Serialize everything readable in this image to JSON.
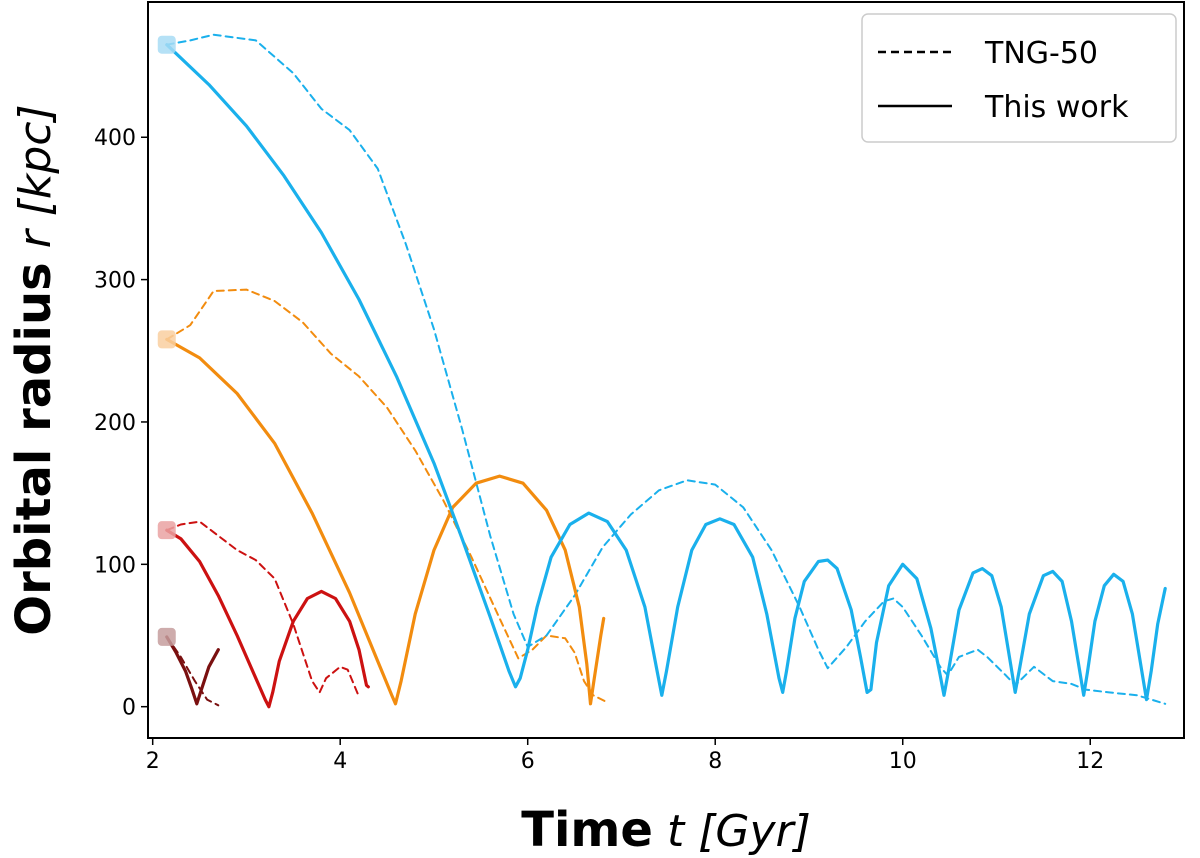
{
  "chart_data": {
    "type": "line",
    "xlabel_bold": "Time",
    "xlabel_unit": " t [Gyr]",
    "ylabel_bold": "Orbital radius",
    "ylabel_unit": " r [kpc]",
    "xlim": [
      1.95,
      13.0
    ],
    "ylim": [
      -22,
      495
    ],
    "xticks": [
      2,
      4,
      6,
      8,
      10,
      12
    ],
    "yticks": [
      0,
      100,
      200,
      300,
      400
    ],
    "legend": {
      "position": "top-right",
      "entries": [
        {
          "label": "TNG-50",
          "style": "dashed"
        },
        {
          "label": "This work",
          "style": "solid"
        }
      ]
    },
    "start_markers": [
      {
        "x": 2.15,
        "y": 465,
        "color": "#a8dcf5"
      },
      {
        "x": 2.15,
        "y": 258,
        "color": "#f9cfa0"
      },
      {
        "x": 2.15,
        "y": 124,
        "color": "#eaa2a2"
      },
      {
        "x": 2.15,
        "y": 49,
        "color": "#c59e9e"
      }
    ],
    "series": [
      {
        "name": "darkred-tng",
        "color": "#7a1010",
        "style": "dashed",
        "points": [
          [
            2.15,
            49
          ],
          [
            2.3,
            35
          ],
          [
            2.45,
            18
          ],
          [
            2.58,
            5
          ],
          [
            2.7,
            1
          ]
        ]
      },
      {
        "name": "darkred-model",
        "color": "#7a1010",
        "style": "solid",
        "points": [
          [
            2.15,
            49
          ],
          [
            2.25,
            38
          ],
          [
            2.35,
            25
          ],
          [
            2.42,
            12
          ],
          [
            2.47,
            2
          ],
          [
            2.52,
            12
          ],
          [
            2.6,
            28
          ],
          [
            2.7,
            40
          ]
        ]
      },
      {
        "name": "red-tng",
        "color": "#cc1111",
        "style": "dashed",
        "points": [
          [
            2.15,
            124
          ],
          [
            2.3,
            128
          ],
          [
            2.5,
            130
          ],
          [
            2.7,
            120
          ],
          [
            2.9,
            110
          ],
          [
            3.1,
            103
          ],
          [
            3.3,
            90
          ],
          [
            3.5,
            58
          ],
          [
            3.7,
            18
          ],
          [
            3.78,
            10
          ],
          [
            3.85,
            20
          ],
          [
            4.0,
            28
          ],
          [
            4.08,
            26
          ],
          [
            4.2,
            7
          ]
        ]
      },
      {
        "name": "red-model",
        "color": "#cc1111",
        "style": "solid",
        "points": [
          [
            2.15,
            124
          ],
          [
            2.3,
            118
          ],
          [
            2.5,
            102
          ],
          [
            2.7,
            78
          ],
          [
            2.9,
            50
          ],
          [
            3.1,
            20
          ],
          [
            3.2,
            5
          ],
          [
            3.24,
            0
          ],
          [
            3.28,
            10
          ],
          [
            3.35,
            32
          ],
          [
            3.5,
            60
          ],
          [
            3.65,
            76
          ],
          [
            3.8,
            81
          ],
          [
            3.95,
            76
          ],
          [
            4.1,
            60
          ],
          [
            4.2,
            40
          ],
          [
            4.28,
            15
          ],
          [
            4.3,
            14
          ]
        ]
      },
      {
        "name": "orange-tng",
        "color": "#f28c0f",
        "style": "dashed",
        "points": [
          [
            2.15,
            258
          ],
          [
            2.4,
            268
          ],
          [
            2.65,
            292
          ],
          [
            3.0,
            293
          ],
          [
            3.3,
            285
          ],
          [
            3.6,
            270
          ],
          [
            3.9,
            248
          ],
          [
            4.2,
            232
          ],
          [
            4.5,
            210
          ],
          [
            4.8,
            180
          ],
          [
            5.1,
            145
          ],
          [
            5.4,
            105
          ],
          [
            5.7,
            62
          ],
          [
            5.9,
            34
          ],
          [
            6.05,
            40
          ],
          [
            6.2,
            50
          ],
          [
            6.4,
            48
          ],
          [
            6.5,
            38
          ],
          [
            6.6,
            18
          ],
          [
            6.7,
            8
          ],
          [
            6.85,
            3
          ]
        ]
      },
      {
        "name": "orange-model",
        "color": "#f28c0f",
        "style": "solid",
        "points": [
          [
            2.15,
            258
          ],
          [
            2.5,
            245
          ],
          [
            2.9,
            220
          ],
          [
            3.3,
            185
          ],
          [
            3.7,
            136
          ],
          [
            4.1,
            80
          ],
          [
            4.4,
            32
          ],
          [
            4.55,
            8
          ],
          [
            4.59,
            2
          ],
          [
            4.65,
            18
          ],
          [
            4.8,
            65
          ],
          [
            5.0,
            110
          ],
          [
            5.2,
            140
          ],
          [
            5.45,
            157
          ],
          [
            5.7,
            162
          ],
          [
            5.95,
            157
          ],
          [
            6.2,
            138
          ],
          [
            6.4,
            110
          ],
          [
            6.55,
            70
          ],
          [
            6.63,
            30
          ],
          [
            6.67,
            2
          ],
          [
            6.71,
            20
          ],
          [
            6.78,
            50
          ],
          [
            6.81,
            62
          ]
        ]
      },
      {
        "name": "blue-tng",
        "color": "#1ab0ec",
        "style": "dashed",
        "points": [
          [
            2.15,
            465
          ],
          [
            2.4,
            468
          ],
          [
            2.65,
            472
          ],
          [
            3.1,
            468
          ],
          [
            3.5,
            445
          ],
          [
            3.8,
            420
          ],
          [
            4.1,
            405
          ],
          [
            4.4,
            378
          ],
          [
            4.7,
            325
          ],
          [
            5.0,
            265
          ],
          [
            5.3,
            195
          ],
          [
            5.6,
            120
          ],
          [
            5.85,
            65
          ],
          [
            6.0,
            42
          ],
          [
            6.2,
            50
          ],
          [
            6.5,
            78
          ],
          [
            6.8,
            112
          ],
          [
            7.1,
            135
          ],
          [
            7.4,
            152
          ],
          [
            7.7,
            159
          ],
          [
            8.0,
            156
          ],
          [
            8.3,
            140
          ],
          [
            8.6,
            110
          ],
          [
            8.9,
            70
          ],
          [
            9.1,
            40
          ],
          [
            9.2,
            27
          ],
          [
            9.4,
            42
          ],
          [
            9.6,
            60
          ],
          [
            9.8,
            74
          ],
          [
            9.9,
            76
          ],
          [
            10.0,
            70
          ],
          [
            10.2,
            50
          ],
          [
            10.4,
            28
          ],
          [
            10.48,
            22
          ],
          [
            10.6,
            35
          ],
          [
            10.8,
            40
          ],
          [
            10.9,
            35
          ],
          [
            11.1,
            22
          ],
          [
            11.2,
            15
          ],
          [
            11.4,
            28
          ],
          [
            11.6,
            18
          ],
          [
            11.8,
            16
          ],
          [
            11.95,
            12
          ],
          [
            12.2,
            10
          ],
          [
            12.5,
            8
          ],
          [
            12.8,
            2
          ]
        ]
      },
      {
        "name": "blue-model",
        "color": "#1ab0ec",
        "style": "solid",
        "points": [
          [
            2.15,
            465
          ],
          [
            2.6,
            437
          ],
          [
            3.0,
            408
          ],
          [
            3.4,
            373
          ],
          [
            3.8,
            333
          ],
          [
            4.2,
            286
          ],
          [
            4.6,
            232
          ],
          [
            5.0,
            171
          ],
          [
            5.3,
            118
          ],
          [
            5.6,
            63
          ],
          [
            5.8,
            25
          ],
          [
            5.87,
            14
          ],
          [
            5.92,
            20
          ],
          [
            6.0,
            40
          ],
          [
            6.1,
            70
          ],
          [
            6.25,
            105
          ],
          [
            6.45,
            128
          ],
          [
            6.65,
            136
          ],
          [
            6.85,
            130
          ],
          [
            7.05,
            110
          ],
          [
            7.25,
            70
          ],
          [
            7.38,
            25
          ],
          [
            7.43,
            8
          ],
          [
            7.48,
            25
          ],
          [
            7.6,
            70
          ],
          [
            7.75,
            110
          ],
          [
            7.9,
            128
          ],
          [
            8.05,
            132
          ],
          [
            8.2,
            128
          ],
          [
            8.4,
            105
          ],
          [
            8.55,
            65
          ],
          [
            8.68,
            20
          ],
          [
            8.72,
            10
          ],
          [
            8.76,
            25
          ],
          [
            8.85,
            62
          ],
          [
            8.95,
            88
          ],
          [
            9.1,
            102
          ],
          [
            9.2,
            103
          ],
          [
            9.3,
            97
          ],
          [
            9.45,
            68
          ],
          [
            9.55,
            35
          ],
          [
            9.62,
            10
          ],
          [
            9.66,
            12
          ],
          [
            9.72,
            45
          ],
          [
            9.85,
            85
          ],
          [
            10.0,
            100
          ],
          [
            10.15,
            90
          ],
          [
            10.3,
            55
          ],
          [
            10.4,
            22
          ],
          [
            10.44,
            8
          ],
          [
            10.48,
            22
          ],
          [
            10.6,
            68
          ],
          [
            10.75,
            94
          ],
          [
            10.85,
            97
          ],
          [
            10.95,
            92
          ],
          [
            11.05,
            70
          ],
          [
            11.15,
            30
          ],
          [
            11.2,
            10
          ],
          [
            11.25,
            28
          ],
          [
            11.35,
            65
          ],
          [
            11.5,
            92
          ],
          [
            11.6,
            95
          ],
          [
            11.7,
            88
          ],
          [
            11.8,
            60
          ],
          [
            11.9,
            20
          ],
          [
            11.93,
            8
          ],
          [
            11.97,
            24
          ],
          [
            12.05,
            60
          ],
          [
            12.15,
            85
          ],
          [
            12.25,
            93
          ],
          [
            12.35,
            88
          ],
          [
            12.45,
            65
          ],
          [
            12.55,
            25
          ],
          [
            12.6,
            5
          ],
          [
            12.65,
            25
          ],
          [
            12.72,
            58
          ],
          [
            12.8,
            83
          ]
        ]
      }
    ]
  }
}
